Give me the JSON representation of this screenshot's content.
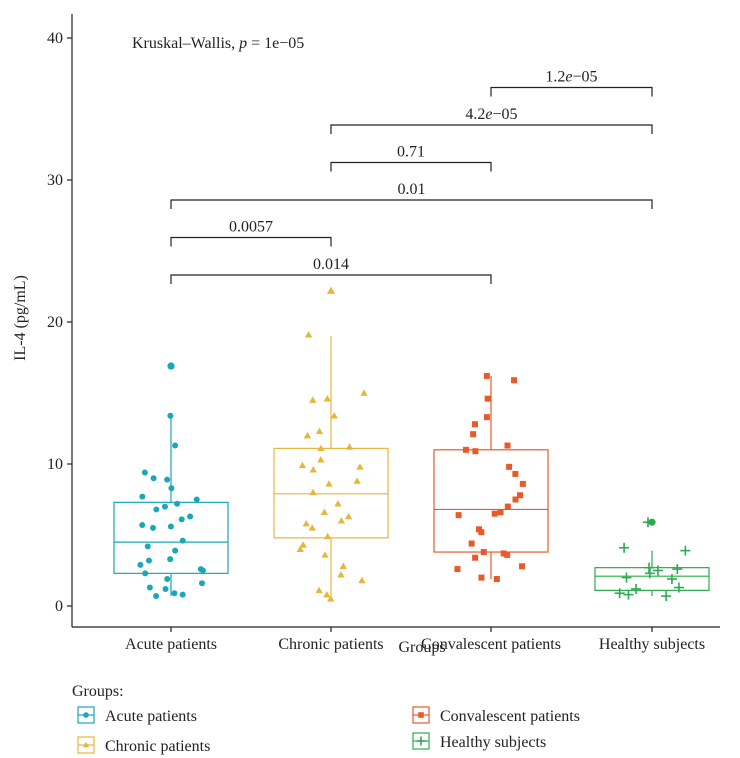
{
  "chart_data": {
    "type": "box",
    "annotation": {
      "prefix": "Kruskal–Wallis, ",
      "p": "p",
      "rest": " = 1e−05"
    },
    "xlabel": "Groups",
    "ylabel": "IL-4 (pg/mL)",
    "ylim": [
      -2,
      42
    ],
    "yticks": [
      "0",
      "10",
      "20",
      "30",
      "40"
    ],
    "grid": false,
    "legend_title": "Groups:",
    "legend_position": "bottom",
    "groups": [
      {
        "name": "Acute patients",
        "color": "#1ba7b9",
        "marker": "circle",
        "box": {
          "q1": 2.3,
          "median": 4.5,
          "q3": 7.3,
          "whisker_low": 0.7,
          "whisker_high": 13.3
        },
        "outliers": [
          16.9
        ],
        "points": [
          13.4,
          11.3,
          9.4,
          9.0,
          8.9,
          8.3,
          7.7,
          7.5,
          7.2,
          7.0,
          6.8,
          6.3,
          6.1,
          5.7,
          5.6,
          5.5,
          4.6,
          4.2,
          3.9,
          3.3,
          3.2,
          2.9,
          2.6,
          2.5,
          2.3,
          1.9,
          1.6,
          1.3,
          1.2,
          0.9,
          0.8,
          0.7
        ]
      },
      {
        "name": "Chronic patients",
        "color": "#e5b73b",
        "marker": "triangle",
        "box": {
          "q1": 4.8,
          "median": 7.9,
          "q3": 11.1,
          "whisker_low": 0.5,
          "whisker_high": 19.0
        },
        "outliers": [
          22.2
        ],
        "points": [
          19.1,
          15.0,
          14.6,
          14.5,
          13.4,
          12.3,
          12.0,
          11.2,
          11.1,
          10.3,
          9.9,
          9.8,
          9.6,
          8.8,
          8.6,
          8.0,
          7.2,
          6.6,
          6.3,
          6.0,
          5.8,
          5.5,
          4.9,
          4.3,
          4.0,
          3.6,
          2.8,
          2.2,
          1.8,
          1.1,
          0.8,
          0.5
        ]
      },
      {
        "name": "Convalescent patients",
        "color": "#e85a2a",
        "marker": "square",
        "box": {
          "q1": 3.8,
          "median": 6.8,
          "q3": 11.0,
          "whisker_low": 1.9,
          "whisker_high": 16.2
        },
        "outliers": [],
        "points": [
          16.2,
          15.9,
          14.6,
          13.3,
          12.8,
          12.1,
          11.3,
          11.0,
          10.9,
          9.8,
          9.3,
          8.6,
          7.8,
          7.5,
          7.0,
          6.6,
          6.5,
          6.4,
          5.4,
          5.2,
          4.4,
          3.8,
          3.7,
          3.6,
          3.4,
          2.8,
          2.6,
          2.0,
          1.9
        ]
      },
      {
        "name": "Healthy subjects",
        "color": "#2eaa4f",
        "marker": "plus",
        "box": {
          "q1": 1.1,
          "median": 2.1,
          "q3": 2.7,
          "whisker_low": 0.7,
          "whisker_high": 3.9
        },
        "outliers": [
          5.9
        ],
        "points": [
          5.9,
          4.1,
          3.9,
          2.7,
          2.6,
          2.5,
          2.3,
          2.0,
          1.9,
          1.3,
          1.2,
          0.9,
          0.8,
          0.7
        ]
      }
    ],
    "comparisons": [
      {
        "a": 0,
        "b": 2,
        "label": "0.014",
        "level": 0
      },
      {
        "a": 0,
        "b": 1,
        "label": "0.0057",
        "level": 1
      },
      {
        "a": 0,
        "b": 3,
        "label": "0.01",
        "level": 2
      },
      {
        "a": 1,
        "b": 2,
        "label": "0.71",
        "level": 3
      },
      {
        "a": 1,
        "b": 3,
        "label": "4.2e−05",
        "level": 4
      },
      {
        "a": 2,
        "b": 3,
        "label": "1.2e−05",
        "level": 5
      }
    ]
  }
}
